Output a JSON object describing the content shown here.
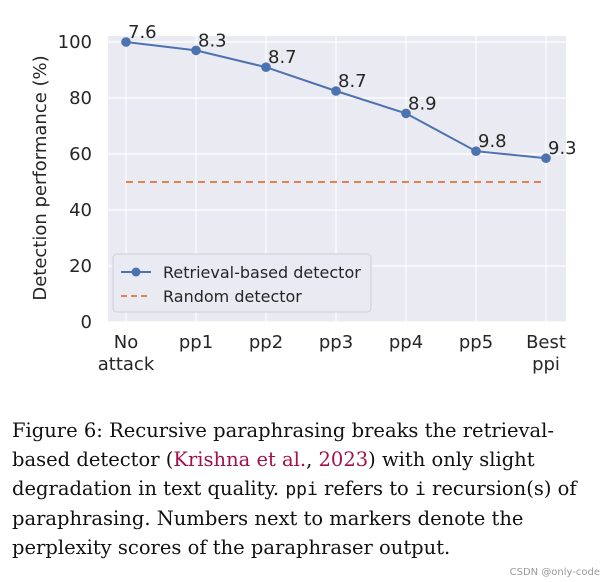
{
  "chart_data": {
    "type": "line",
    "categories": [
      [
        "No",
        "attack"
      ],
      [
        "pp1"
      ],
      [
        "pp2"
      ],
      [
        "pp3"
      ],
      [
        "pp4"
      ],
      [
        "pp5"
      ],
      [
        "Best",
        "ppi"
      ]
    ],
    "ylabel": "Detection performance (%)",
    "ylim": [
      0,
      100
    ],
    "yticks": [
      0,
      20,
      40,
      60,
      80,
      100
    ],
    "grid": true,
    "series": [
      {
        "name": "Retrieval-based detector",
        "values": [
          100,
          97,
          91,
          82.5,
          74.5,
          61,
          58.5
        ],
        "annotations": [
          "7.6",
          "8.3",
          "8.7",
          "8.7",
          "8.9",
          "9.8",
          "9.3"
        ],
        "color": "#4c72b0",
        "style": "solid-with-markers"
      },
      {
        "name": "Random detector",
        "values": [
          50,
          50,
          50,
          50,
          50,
          50,
          50
        ],
        "color": "#dd8452",
        "style": "dashed"
      }
    ],
    "legend_position": "lower-left",
    "background": "#eaeaf2"
  },
  "caption": {
    "label": "Figure 6:",
    "text_1": "Recursive paraphrasing breaks the retrieval-based detector (",
    "citation_author": "Krishna et al.",
    "citation_sep": ", ",
    "citation_year": "2023",
    "text_2": ") with only slight degradation in text quality. ",
    "code_ppi": "ppi",
    "text_3": " refers to ",
    "code_i": "i",
    "text_4": " recursion(s) of paraphrasing. Numbers next to markers denote the perplexity scores of the paraphraser output."
  },
  "watermark": "CSDN @only-code"
}
